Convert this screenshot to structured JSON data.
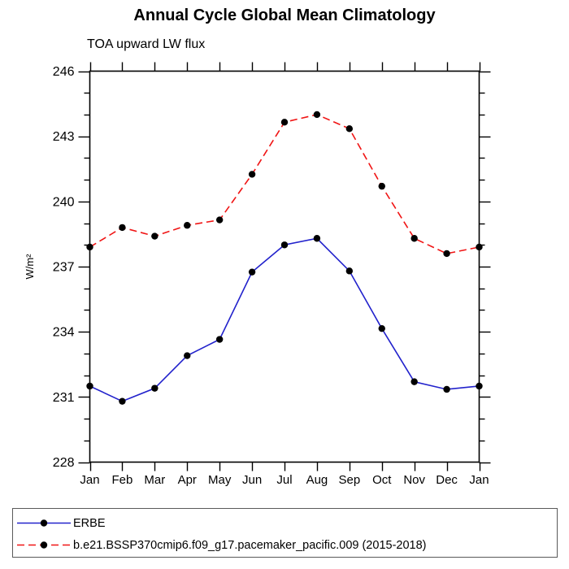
{
  "header": {
    "title": "Annual Cycle Global Mean Climatology",
    "subtitle": "TOA upward LW flux"
  },
  "chart_data": {
    "type": "line",
    "title": "Annual Cycle Global Mean Climatology",
    "subtitle": "TOA upward LW flux",
    "xlabel": "",
    "ylabel": "W/m²",
    "categories": [
      "Jan",
      "Feb",
      "Mar",
      "Apr",
      "May",
      "Jun",
      "Jul",
      "Aug",
      "Sep",
      "Oct",
      "Nov",
      "Dec",
      "Jan"
    ],
    "ylim": [
      228,
      246
    ],
    "y_major_ticks": [
      228,
      231,
      234,
      237,
      240,
      243,
      246
    ],
    "y_minor_step": 1,
    "grid": false,
    "legend_position": "bottom",
    "axis_color": "#000000",
    "marker_color": "#000000",
    "series": [
      {
        "name": "ERBE",
        "color": "#2222cc",
        "style": "solid",
        "marker": "circle",
        "values": [
          231.5,
          230.8,
          231.4,
          232.9,
          233.65,
          236.75,
          238.0,
          238.3,
          236.8,
          234.15,
          231.7,
          231.35,
          231.5
        ]
      },
      {
        "name": "b.e21.BSSP370cmip6.f09_g17.pacemaker_pacific.009 (2015-2018)",
        "color": "#f01414",
        "style": "dashed",
        "marker": "circle",
        "values": [
          237.9,
          238.8,
          238.4,
          238.9,
          239.15,
          241.25,
          243.65,
          244.0,
          243.35,
          240.7,
          238.3,
          237.6,
          237.9
        ]
      }
    ]
  }
}
